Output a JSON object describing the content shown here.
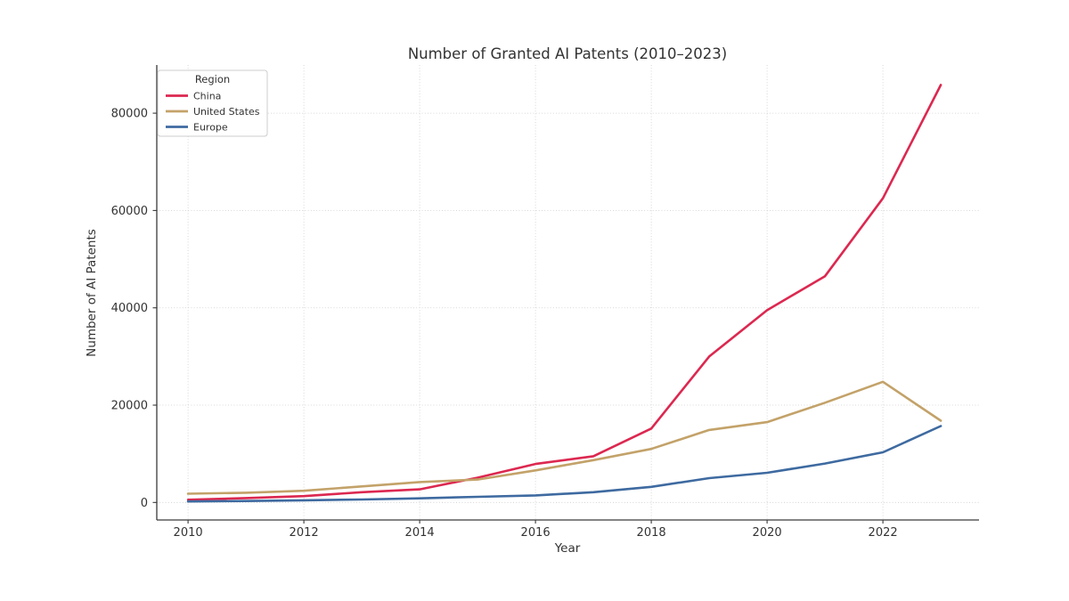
{
  "figure": {
    "background": "#ffffff",
    "text_color": "#333333",
    "grid_color": "#cccccc",
    "spine_color": "#3a3a3a"
  },
  "chart_data": {
    "type": "line",
    "title": "Number of Granted AI Patents (2010–2023)",
    "xlabel": "Year",
    "ylabel": "Number of AI Patents",
    "x": [
      2010,
      2011,
      2012,
      2013,
      2014,
      2015,
      2016,
      2017,
      2018,
      2019,
      2020,
      2021,
      2022,
      2023
    ],
    "series": [
      {
        "name": "China",
        "color": "#dc2850",
        "values": [
          550,
          900,
          1300,
          2100,
          2700,
          5100,
          7900,
          9500,
          15200,
          30000,
          39500,
          46500,
          62500,
          85800
        ]
      },
      {
        "name": "United States",
        "color": "#c3a269",
        "values": [
          1800,
          2000,
          2400,
          3300,
          4200,
          4700,
          6600,
          8700,
          11000,
          14900,
          16500,
          20500,
          24800,
          16800
        ]
      },
      {
        "name": "Europe",
        "color": "#3e6aa0",
        "values": [
          200,
          300,
          450,
          600,
          850,
          1150,
          1450,
          2100,
          3200,
          5000,
          6100,
          8000,
          10300,
          15700
        ]
      }
    ],
    "x_ticks": [
      2010,
      2012,
      2014,
      2016,
      2018,
      2020,
      2022
    ],
    "y_ticks": [
      0,
      20000,
      40000,
      60000,
      80000
    ],
    "xlim": [
      2009.46,
      2023.66
    ],
    "ylim": [
      -3600,
      89900
    ],
    "grid": true,
    "legend_title": "Region",
    "legend_position": "upper-left"
  }
}
